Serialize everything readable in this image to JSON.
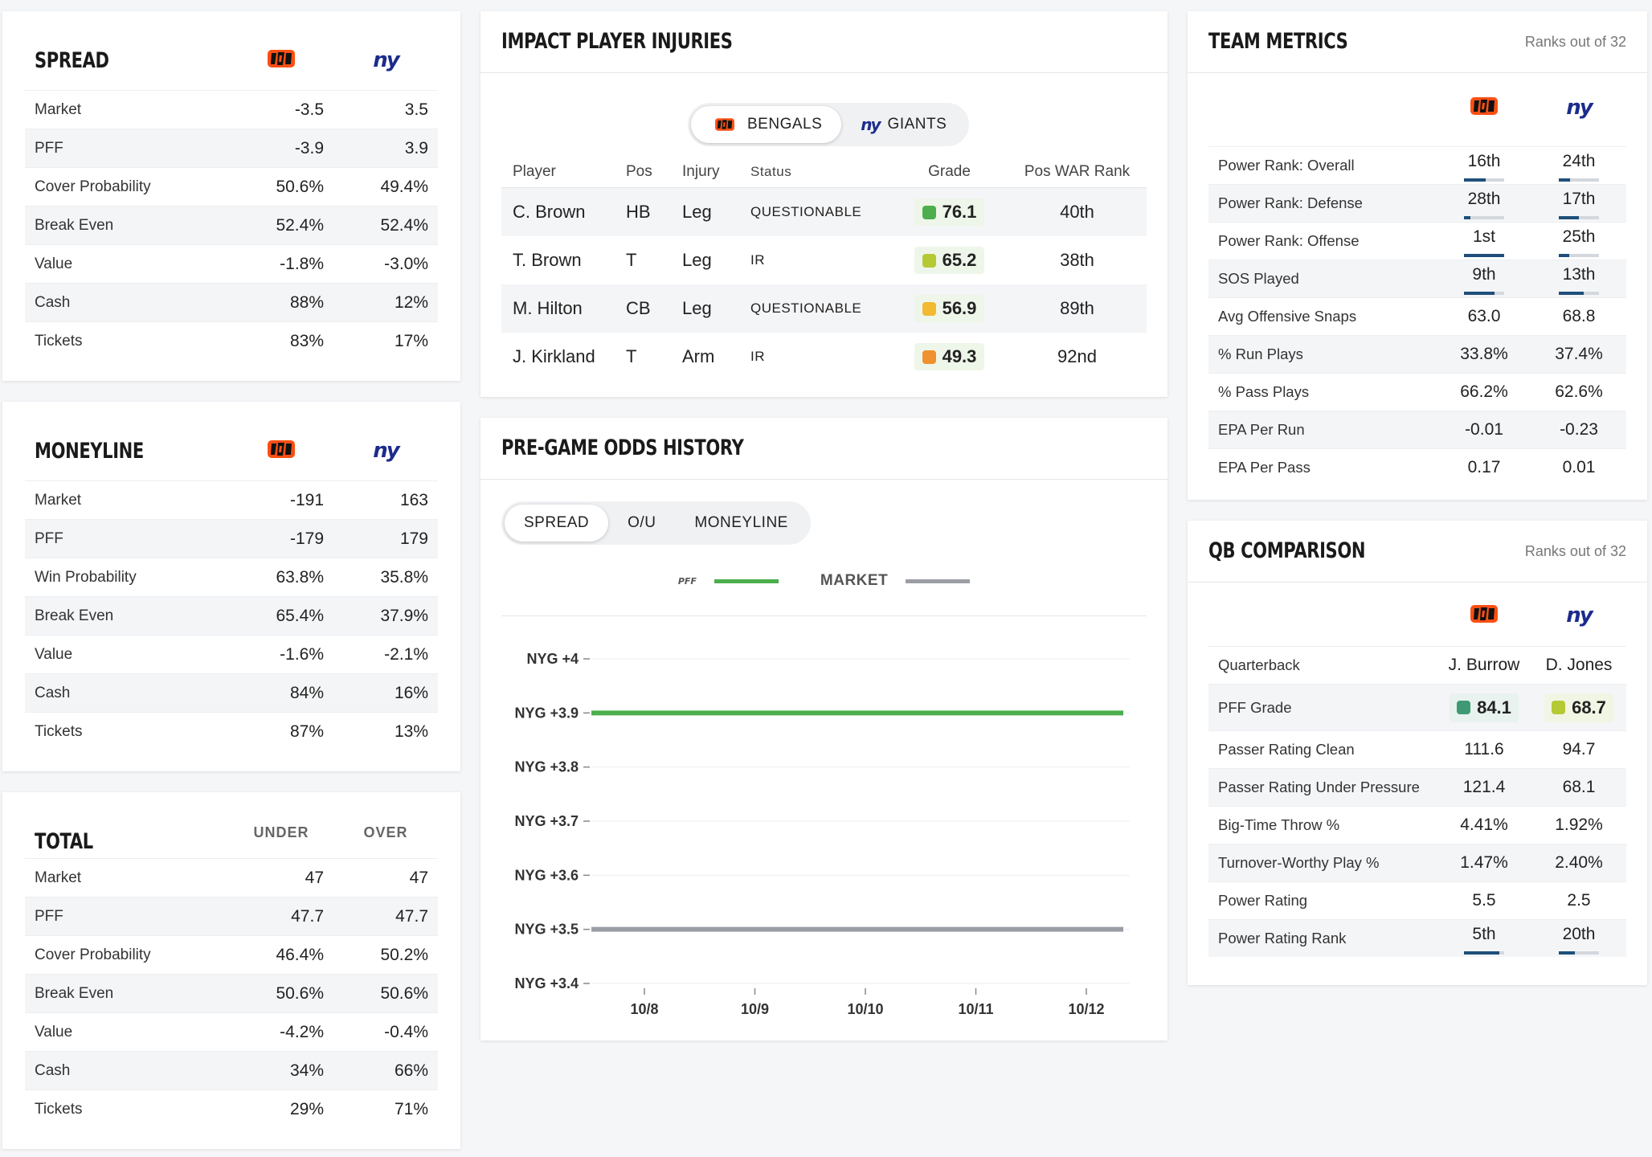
{
  "spread": {
    "title": "SPREAD",
    "rows": [
      {
        "label": "Market",
        "v1": "-3.5",
        "v2": "3.5"
      },
      {
        "label": "PFF",
        "v1": "-3.9",
        "v2": "3.9"
      },
      {
        "label": "Cover Probability",
        "v1": "50.6%",
        "v2": "49.4%"
      },
      {
        "label": "Break Even",
        "v1": "52.4%",
        "v2": "52.4%"
      },
      {
        "label": "Value",
        "v1": "-1.8%",
        "v2": "-3.0%"
      },
      {
        "label": "Cash",
        "v1": "88%",
        "v2": "12%"
      },
      {
        "label": "Tickets",
        "v1": "83%",
        "v2": "17%"
      }
    ]
  },
  "moneyline": {
    "title": "MONEYLINE",
    "rows": [
      {
        "label": "Market",
        "v1": "-191",
        "v2": "163"
      },
      {
        "label": "PFF",
        "v1": "-179",
        "v2": "179"
      },
      {
        "label": "Win Probability",
        "v1": "63.8%",
        "v2": "35.8%"
      },
      {
        "label": "Break Even",
        "v1": "65.4%",
        "v2": "37.9%"
      },
      {
        "label": "Value",
        "v1": "-1.6%",
        "v2": "-2.1%"
      },
      {
        "label": "Cash",
        "v1": "84%",
        "v2": "16%"
      },
      {
        "label": "Tickets",
        "v1": "87%",
        "v2": "13%"
      }
    ]
  },
  "total": {
    "title": "TOTAL",
    "col1": "UNDER",
    "col2": "OVER",
    "rows": [
      {
        "label": "Market",
        "v1": "47",
        "v2": "47"
      },
      {
        "label": "PFF",
        "v1": "47.7",
        "v2": "47.7"
      },
      {
        "label": "Cover Probability",
        "v1": "46.4%",
        "v2": "50.2%"
      },
      {
        "label": "Break Even",
        "v1": "50.6%",
        "v2": "50.6%"
      },
      {
        "label": "Value",
        "v1": "-4.2%",
        "v2": "-0.4%"
      },
      {
        "label": "Cash",
        "v1": "34%",
        "v2": "66%"
      },
      {
        "label": "Tickets",
        "v1": "29%",
        "v2": "71%"
      }
    ]
  },
  "teams": {
    "home_logo_icon": "bengals-logo-icon",
    "away_logo_text": "ny"
  },
  "injuries": {
    "title": "IMPACT PLAYER INJURIES",
    "tabs": [
      "BENGALS",
      "GIANTS"
    ],
    "headers": [
      "Player",
      "Pos",
      "Injury",
      "Status",
      "Grade",
      "Pos WAR Rank"
    ],
    "rows": [
      {
        "player": "C. Brown",
        "pos": "HB",
        "injury": "Leg",
        "status": "QUESTIONABLE",
        "grade": "76.1",
        "grade_color": "#4cae4c",
        "war": "40th"
      },
      {
        "player": "T. Brown",
        "pos": "T",
        "injury": "Leg",
        "status": "IR",
        "grade": "65.2",
        "grade_color": "#b5c934",
        "war": "38th"
      },
      {
        "player": "M. Hilton",
        "pos": "CB",
        "injury": "Leg",
        "status": "QUESTIONABLE",
        "grade": "56.9",
        "grade_color": "#f2b931",
        "war": "89th"
      },
      {
        "player": "J. Kirkland",
        "pos": "T",
        "injury": "Arm",
        "status": "IR",
        "grade": "49.3",
        "grade_color": "#f0912f",
        "war": "92nd"
      }
    ]
  },
  "odds_history": {
    "title": "PRE-GAME ODDS HISTORY",
    "tabs": [
      "SPREAD",
      "O/U",
      "MONEYLINE"
    ],
    "legend_pff": "PFF",
    "legend_market": "MARKET",
    "pff_color": "#4cae4c",
    "market_color": "#9a9ea4"
  },
  "chart_data": {
    "type": "line",
    "title": "PRE-GAME ODDS HISTORY",
    "x": [
      "10/8",
      "10/9",
      "10/10",
      "10/11",
      "10/12"
    ],
    "y_ticks": [
      {
        "value": 4.0,
        "label": "NYG +4"
      },
      {
        "value": 3.9,
        "label": "NYG +3.9"
      },
      {
        "value": 3.8,
        "label": "NYG +3.8"
      },
      {
        "value": 3.7,
        "label": "NYG +3.7"
      },
      {
        "value": 3.6,
        "label": "NYG +3.6"
      },
      {
        "value": 3.5,
        "label": "NYG +3.5"
      },
      {
        "value": 3.4,
        "label": "NYG +3.4"
      }
    ],
    "ylim": [
      3.4,
      4.0
    ],
    "series": [
      {
        "name": "PFF",
        "values": [
          3.9,
          3.9,
          3.9,
          3.9,
          3.9
        ]
      },
      {
        "name": "MARKET",
        "values": [
          3.5,
          3.5,
          3.5,
          3.5,
          3.5
        ]
      }
    ]
  },
  "team_metrics": {
    "title": "TEAM METRICS",
    "note": "Ranks out of 32",
    "rows": [
      {
        "label": "Power Rank: Overall",
        "v1": "16th",
        "v2": "24th",
        "r1": 16,
        "r2": 24
      },
      {
        "label": "Power Rank: Defense",
        "v1": "28th",
        "v2": "17th",
        "r1": 28,
        "r2": 17
      },
      {
        "label": "Power Rank: Offense",
        "v1": "1st",
        "v2": "25th",
        "r1": 1,
        "r2": 25
      },
      {
        "label": "SOS Played",
        "v1": "9th",
        "v2": "13th",
        "r1": 9,
        "r2": 13
      },
      {
        "label": "Avg Offensive Snaps",
        "v1": "63.0",
        "v2": "68.8"
      },
      {
        "label": "% Run Plays",
        "v1": "33.8%",
        "v2": "37.4%"
      },
      {
        "label": "% Pass Plays",
        "v1": "66.2%",
        "v2": "62.6%"
      },
      {
        "label": "EPA Per Run",
        "v1": "-0.01",
        "v2": "-0.23"
      },
      {
        "label": "EPA Per Pass",
        "v1": "0.17",
        "v2": "0.01"
      }
    ]
  },
  "qb": {
    "title": "QB COMPARISON",
    "note": "Ranks out of 32",
    "rows": [
      {
        "label": "Quarterback",
        "v1": "J. Burrow",
        "v2": "D. Jones"
      },
      {
        "label": "PFF Grade",
        "v1": "84.1",
        "v2": "68.7",
        "c1": "#3f9a73",
        "c2": "#b5c934",
        "bg1": "#e8f2ee",
        "bg2": "#f1f5e4"
      },
      {
        "label": "Passer Rating Clean",
        "v1": "111.6",
        "v2": "94.7"
      },
      {
        "label": "Passer Rating Under Pressure",
        "v1": "121.4",
        "v2": "68.1"
      },
      {
        "label": "Big-Time Throw %",
        "v1": "4.41%",
        "v2": "1.92%"
      },
      {
        "label": "Turnover-Worthy Play %",
        "v1": "1.47%",
        "v2": "2.40%"
      },
      {
        "label": "Power Rating",
        "v1": "5.5",
        "v2": "2.5"
      },
      {
        "label": "Power Rating Rank",
        "v1": "5th",
        "v2": "20th",
        "r1": 5,
        "r2": 20
      }
    ]
  }
}
